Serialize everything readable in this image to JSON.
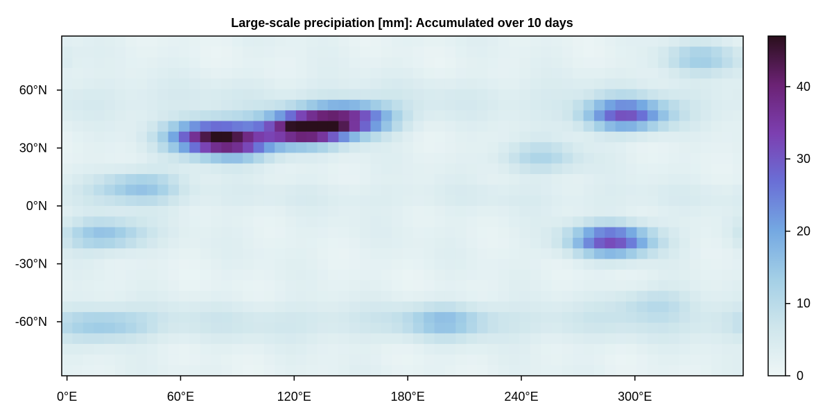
{
  "chart_data": {
    "type": "heatmap",
    "title": "Large-scale precipiation [mm]: Accumulated over 10 days",
    "x_axis": {
      "unit": "°E",
      "range": [
        -2.8,
        357.2
      ],
      "ticks": [
        0,
        60,
        120,
        180,
        240,
        300
      ],
      "tick_labels": [
        "0°E",
        "60°E",
        "120°E",
        "180°E",
        "240°E",
        "300°E"
      ]
    },
    "y_axis": {
      "unit": "°N",
      "range": [
        -88,
        88
      ],
      "ticks": [
        60,
        30,
        0,
        -30,
        -60
      ],
      "tick_labels": [
        "60°N",
        "30°N",
        "0°N",
        "-30°N",
        "-60°N"
      ]
    },
    "colorbar": {
      "range": [
        0,
        47
      ],
      "ticks": [
        0,
        10,
        20,
        30,
        40
      ],
      "tick_labels": [
        "0",
        "10",
        "20",
        "30",
        "40"
      ],
      "colormap": [
        "#eef6f6",
        "#cfe6ec",
        "#a3cfe6",
        "#74a8e2",
        "#6a6fd6",
        "#7c3fb0",
        "#6b2274",
        "#2a0f1c"
      ]
    },
    "grid": "off",
    "features": [
      {
        "lon": 125,
        "lat": 40,
        "value": 47
      },
      {
        "lon": 150,
        "lat": 45,
        "value": 33
      },
      {
        "lon": 75,
        "lat": 36,
        "value": 35
      },
      {
        "lon": 90,
        "lat": 32,
        "value": 26
      },
      {
        "lon": 295,
        "lat": 47,
        "value": 30
      },
      {
        "lon": 288,
        "lat": -18,
        "value": 32
      },
      {
        "lon": 20,
        "lat": -15,
        "value": 17
      },
      {
        "lon": 38,
        "lat": 10,
        "value": 16
      },
      {
        "lon": 200,
        "lat": -60,
        "value": 13
      },
      {
        "lon": 20,
        "lat": -62,
        "value": 12
      },
      {
        "lon": 335,
        "lat": 76,
        "value": 14
      },
      {
        "lon": 250,
        "lat": 25,
        "value": 12
      },
      {
        "lon": 310,
        "lat": -50,
        "value": 10
      }
    ]
  }
}
